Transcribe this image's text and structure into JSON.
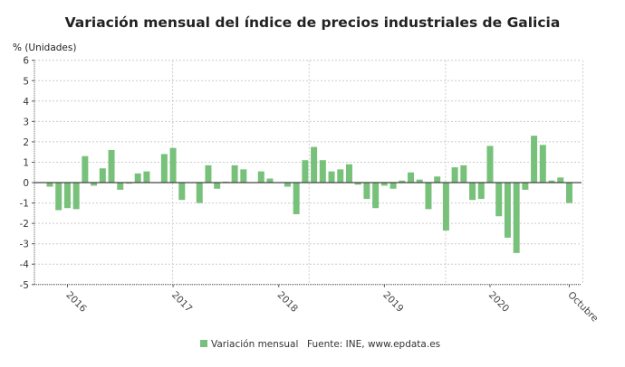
{
  "chart_data": {
    "type": "bar",
    "title": "Variación mensual del índice de precios industriales de Galicia",
    "ylabel": "% (Unidades)",
    "xlabel": "",
    "ylim": [
      -5,
      6
    ],
    "yticks": [
      -5,
      -4,
      -3,
      -2,
      -1,
      0,
      1,
      2,
      3,
      4,
      5,
      6
    ],
    "grid": true,
    "bar_color": "#77c17a",
    "x_tick_labels": [
      {
        "label": "2016",
        "category": "2016-01"
      },
      {
        "label": "2017",
        "category": "2017-01"
      },
      {
        "label": "2018",
        "category": "2018-01"
      },
      {
        "label": "2019",
        "category": "2019-01"
      },
      {
        "label": "2020",
        "category": "2020-01"
      },
      {
        "label": "Octubre",
        "category": "2020-10"
      }
    ],
    "categories": [
      "2015-11",
      "2015-12",
      "2016-01",
      "2016-02",
      "2016-03",
      "2016-04",
      "2016-05",
      "2016-06",
      "2016-07",
      "2016-08",
      "2016-09",
      "2016-10",
      "2016-11",
      "2016-12",
      "2017-01",
      "2017-02",
      "2017-03",
      "2017-04",
      "2017-05",
      "2017-06",
      "2017-07",
      "2017-08",
      "2017-09",
      "2017-10",
      "2017-11",
      "2017-12",
      "2018-01",
      "2018-02",
      "2018-03",
      "2018-04",
      "2018-05",
      "2018-06",
      "2018-07",
      "2018-08",
      "2018-09",
      "2018-10",
      "2018-11",
      "2018-12",
      "2019-01",
      "2019-02",
      "2019-03",
      "2019-04",
      "2019-05",
      "2019-06",
      "2019-07",
      "2019-08",
      "2019-09",
      "2019-10",
      "2019-11",
      "2019-12",
      "2020-01",
      "2020-02",
      "2020-03",
      "2020-04",
      "2020-05",
      "2020-06",
      "2020-07",
      "2020-08",
      "2020-09",
      "2020-10"
    ],
    "series": [
      {
        "name": "Variación mensual",
        "values": [
          -0.2,
          -1.35,
          -1.25,
          -1.3,
          1.3,
          -0.15,
          0.7,
          1.6,
          -0.35,
          -0.05,
          0.45,
          0.55,
          0.0,
          1.4,
          1.7,
          -0.85,
          0.0,
          -1.0,
          0.85,
          -0.3,
          0.05,
          0.85,
          0.65,
          0.0,
          0.55,
          0.2,
          0.0,
          -0.2,
          -1.55,
          1.1,
          1.75,
          1.1,
          0.55,
          0.65,
          0.9,
          -0.1,
          -0.8,
          -1.25,
          -0.15,
          -0.3,
          0.1,
          0.5,
          0.15,
          -1.3,
          0.3,
          -2.35,
          0.75,
          0.85,
          -0.85,
          -0.8,
          1.8,
          -1.65,
          -2.7,
          -3.45,
          -0.35,
          2.3,
          1.85,
          0.1,
          0.25,
          -1.0
        ]
      }
    ],
    "legend": {
      "label": "Variación mensual",
      "placement": "bottom"
    },
    "source": "Fuente: INE, www.epdata.es"
  }
}
